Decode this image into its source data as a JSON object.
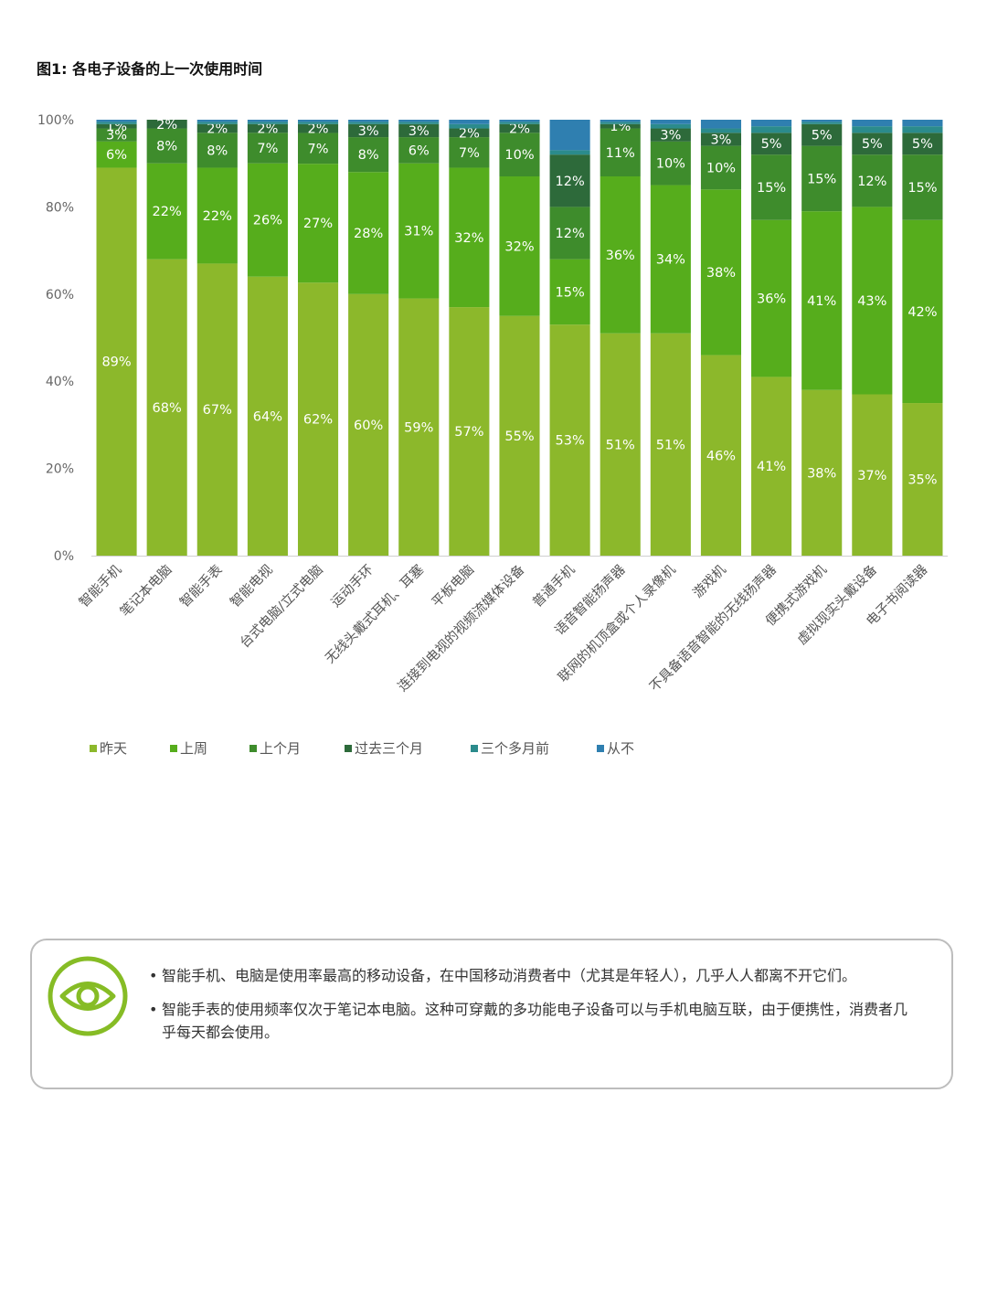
{
  "title": "图1: 各电子设备的上一次使用时间",
  "legend_items": [
    "昨天",
    "上周",
    "上个月",
    "过去三个月",
    "三个多月前",
    "从不"
  ],
  "colors": [
    "#8cb82b",
    "#56ad1c",
    "#3e8c2c",
    "#2d6a3a",
    "#2b8b8c",
    "#2f7fb0"
  ],
  "chart_data": {
    "type": "bar",
    "stacked": true,
    "title": "图1: 各电子设备的上一次使用时间",
    "xlabel": "",
    "ylabel": "",
    "ylim": [
      0,
      100
    ],
    "y_ticks": [
      "0%",
      "20%",
      "40%",
      "60%",
      "80%",
      "100%"
    ],
    "categories": [
      "智能手机",
      "笔记本电脑",
      "智能手表",
      "智能电视",
      "台式电脑/立式电脑",
      "运动手环",
      "无线头戴式耳机、耳塞",
      "平板电脑",
      "连接到电视的视频流媒体设备",
      "普通手机",
      "语音智能扬声器",
      "联网的机顶盒或个人录像机",
      "游戏机",
      "不具备语音智能的无线扬声器",
      "便携式游戏机",
      "虚拟现实头戴设备",
      "电子书阅读器"
    ],
    "series": [
      {
        "name": "昨天",
        "values": [
          89,
          68,
          67,
          64,
          62,
          60,
          59,
          57,
          55,
          53,
          51,
          51,
          46,
          41,
          38,
          37,
          35
        ]
      },
      {
        "name": "上周",
        "values": [
          6,
          22,
          22,
          26,
          27,
          28,
          31,
          32,
          32,
          15,
          36,
          34,
          38,
          36,
          41,
          43,
          42
        ]
      },
      {
        "name": "上个月",
        "values": [
          3,
          8,
          8,
          7,
          7,
          8,
          6,
          7,
          10,
          12,
          11,
          10,
          10,
          15,
          15,
          12,
          15
        ]
      },
      {
        "name": "过去三个月",
        "values": [
          1,
          2,
          2,
          2,
          2,
          3,
          3,
          2,
          2,
          12,
          1,
          3,
          3,
          5,
          5,
          5,
          5
        ]
      },
      {
        "name": "三个多月前",
        "values": [
          0.5,
          0,
          0.5,
          0.5,
          0.5,
          0.5,
          0.5,
          1,
          0.5,
          1,
          0.5,
          1,
          1,
          1.5,
          0.5,
          1.5,
          1.5
        ]
      },
      {
        "name": "从不",
        "values": [
          0.5,
          0,
          0.5,
          0.5,
          0.5,
          0.5,
          0.5,
          1,
          0.5,
          7,
          0.5,
          1,
          2,
          1.5,
          0.5,
          1.5,
          1.5
        ]
      }
    ],
    "labels": [
      [
        "89%",
        "68%",
        "67%",
        "64%",
        "62%",
        "60%",
        "59%",
        "57%",
        "55%",
        "53%",
        "51%",
        "51%",
        "46%",
        "41%",
        "38%",
        "37%",
        "35%"
      ],
      [
        "6%",
        "22%",
        "22%",
        "26%",
        "27%",
        "28%",
        "31%",
        "32%",
        "32%",
        "15%",
        "36%",
        "34%",
        "38%",
        "36%",
        "41%",
        "43%",
        "42%"
      ],
      [
        "3%",
        "8%",
        "8%",
        "7%",
        "7%",
        "8%",
        "6%",
        "7%",
        "10%",
        "12%",
        "11%",
        "10%",
        "10%",
        "15%",
        "15%",
        "12%",
        "15%"
      ],
      [
        "1%",
        "2%",
        "2%",
        "2%",
        "2%",
        "3%",
        "3%",
        "2%",
        "2%",
        "12%",
        "1%",
        "3%",
        "3%",
        "5%",
        "5%",
        "5%",
        "5%"
      ],
      [
        "",
        "",
        "",
        "",
        "",
        "",
        "",
        "",
        "",
        "",
        "",
        "",
        "",
        "",
        "",
        "",
        ""
      ],
      [
        "",
        "",
        "",
        "",
        "",
        "",
        "",
        "",
        "",
        "",
        "",
        "",
        "",
        "",
        "",
        "",
        ""
      ]
    ],
    "legend_position": "bottom-left",
    "grid": false
  },
  "note": {
    "icon": "eye-icon",
    "accent": "#86bc25",
    "bullets": [
      "智能手机、电脑是使用率最高的移动设备，在中国移动消费者中（尤其是年轻人），几乎人人都离不开它们。",
      "智能手表的使用频率仅次于笔记本电脑。这种可穿戴的多功能电子设备可以与手机电脑互联，由于便携性，消费者几乎每天都会使用。"
    ]
  }
}
